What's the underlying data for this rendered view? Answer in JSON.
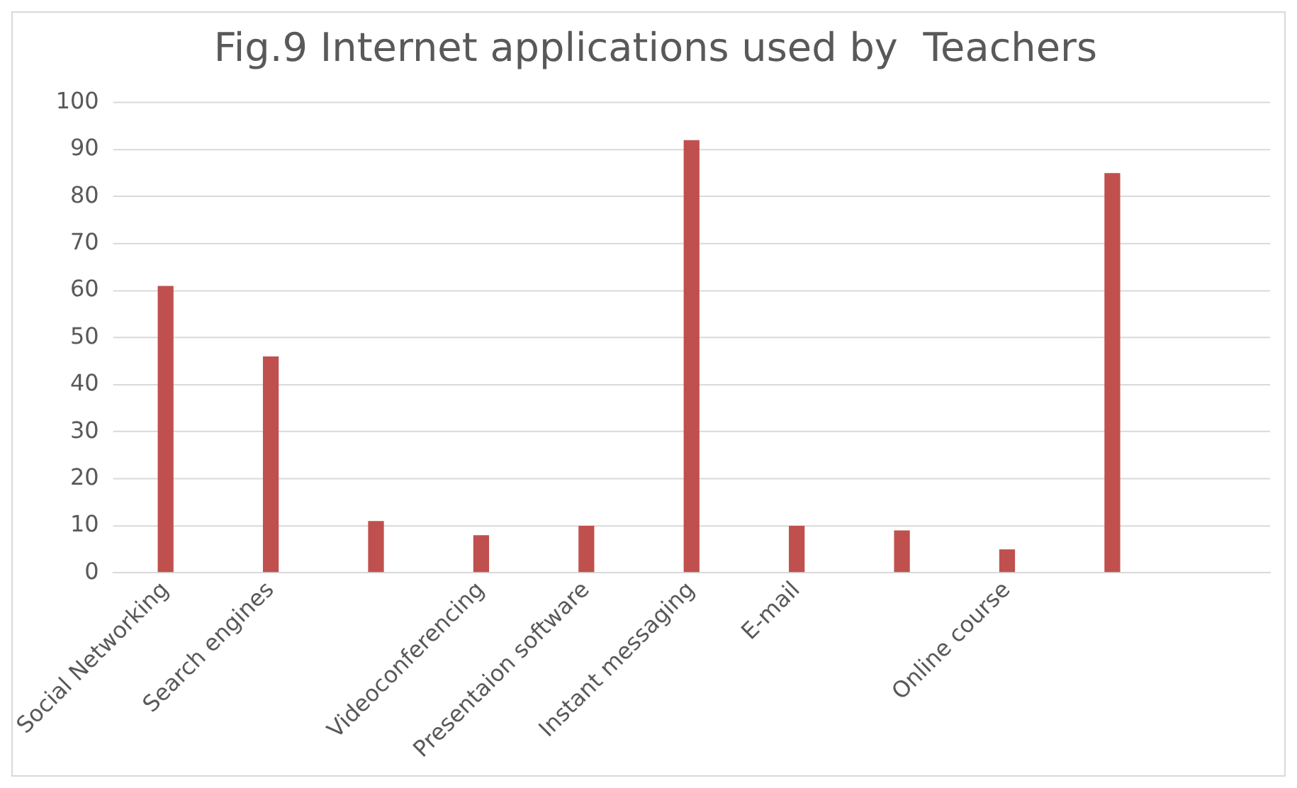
{
  "chart_data": {
    "type": "bar",
    "title": "Fig.9 Internet applications used by  Teachers",
    "categories": [
      "Social Networking",
      "Search engines",
      null,
      "Videoconferencing",
      "Presentaion software",
      "Instant messaging",
      "E-mail",
      null,
      "Online course",
      null,
      null
    ],
    "values": [
      61,
      46,
      11,
      8,
      10,
      92,
      10,
      9,
      5,
      85,
      null
    ],
    "color": "#c0504d",
    "ylim": [
      0,
      100
    ],
    "yticks": [
      0,
      10,
      20,
      30,
      40,
      50,
      60,
      70,
      80,
      90,
      100
    ],
    "grid": "y"
  }
}
